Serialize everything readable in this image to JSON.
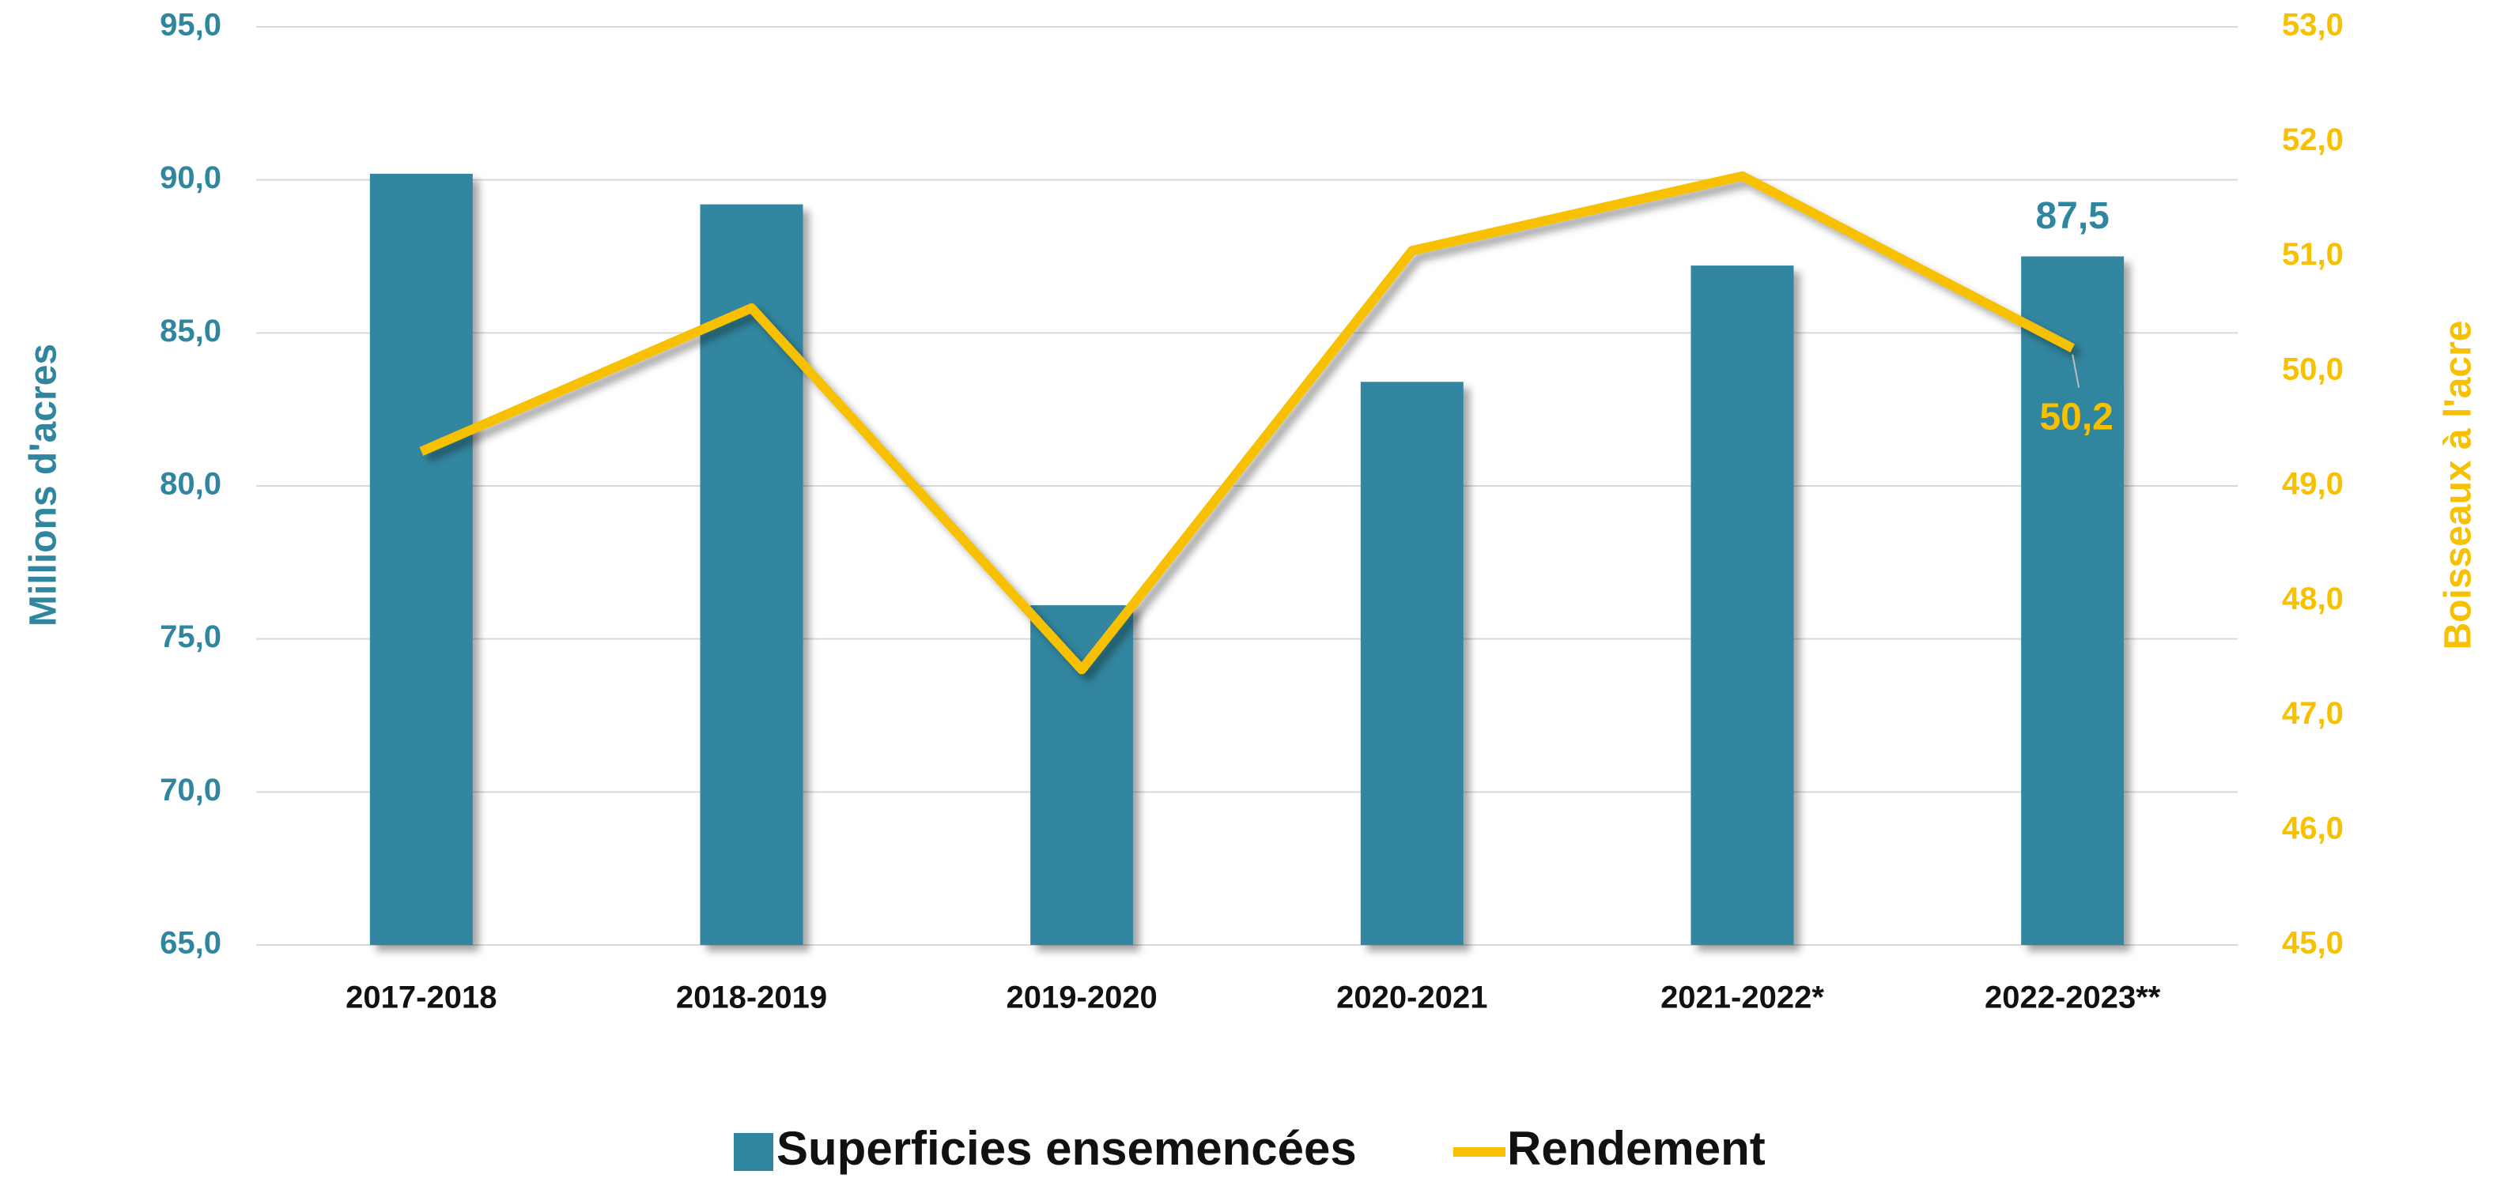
{
  "chart_data": {
    "type": "bar_line",
    "categories": [
      "2017-2018",
      "2018-2019",
      "2019-2020",
      "2020-2021",
      "2021-2022*",
      "2022-2023**"
    ],
    "series": [
      {
        "name": "Superficies ensemencées",
        "type": "bar",
        "color": "#31869f",
        "values": [
          90.2,
          89.2,
          76.1,
          83.4,
          87.2,
          87.5
        ],
        "value_labels": [
          null,
          null,
          null,
          null,
          null,
          "87,5"
        ]
      },
      {
        "name": "Rendement",
        "type": "line",
        "axis": "y2",
        "color": "#f7c000",
        "values": [
          49.3,
          50.55,
          47.4,
          51.05,
          51.7,
          50.2
        ],
        "value_labels": [
          null,
          null,
          null,
          null,
          null,
          "50,2"
        ]
      }
    ],
    "ylabel": "Millions d'acres",
    "y2label": "Boisseaux à l'acre",
    "ylim": [
      65,
      95
    ],
    "yticks": [
      {
        "value": 65,
        "label": "65,0"
      },
      {
        "value": 70,
        "label": "70,0"
      },
      {
        "value": 75,
        "label": "75,0"
      },
      {
        "value": 80,
        "label": "80,0"
      },
      {
        "value": 85,
        "label": "85,0"
      },
      {
        "value": 90,
        "label": "90,0"
      },
      {
        "value": 95,
        "label": "95,0"
      }
    ],
    "y2lim": [
      45,
      53
    ],
    "y2ticks": [
      {
        "value": 45,
        "label": "45,0"
      },
      {
        "value": 46,
        "label": "46,0"
      },
      {
        "value": 47,
        "label": "47,0"
      },
      {
        "value": 48,
        "label": "48,0"
      },
      {
        "value": 49,
        "label": "49,0"
      },
      {
        "value": 50,
        "label": "50,0"
      },
      {
        "value": 51,
        "label": "51,0"
      },
      {
        "value": 52,
        "label": "52,0"
      },
      {
        "value": 53,
        "label": "53,0"
      }
    ],
    "grid": true,
    "legend": "bottom"
  }
}
